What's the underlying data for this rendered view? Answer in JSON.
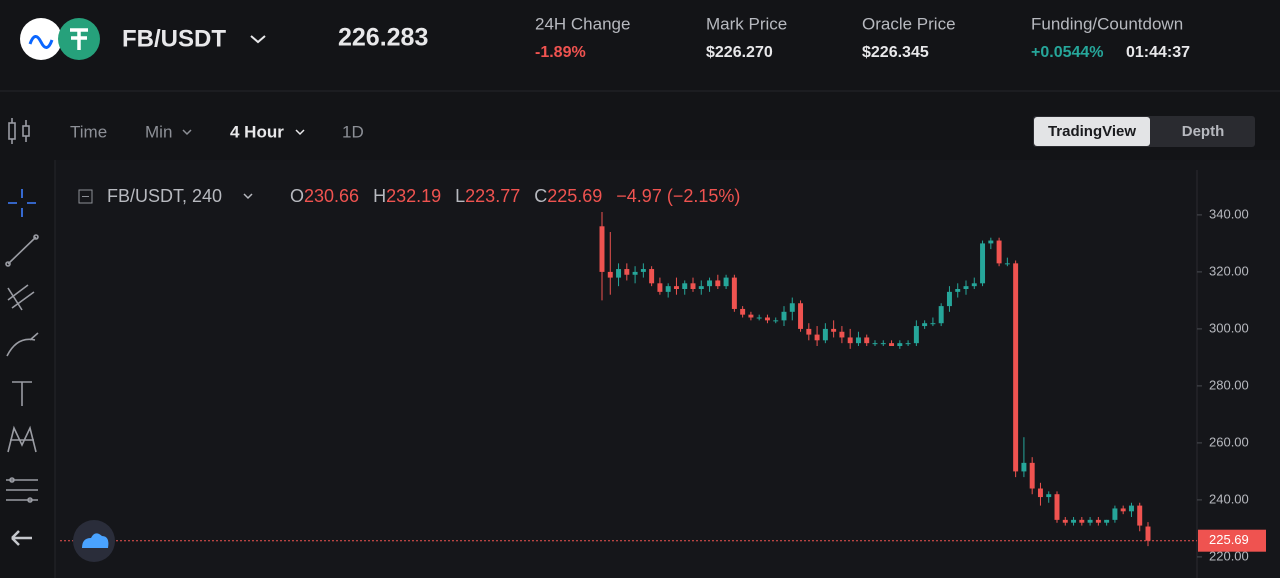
{
  "header": {
    "pair": "FB/USDT",
    "price": "226.283",
    "stats": [
      {
        "label": "24H Change",
        "value": "-1.89%"
      },
      {
        "label": "Mark Price",
        "value": "$226.270"
      },
      {
        "label": "Oracle Price",
        "value": "$226.345"
      },
      {
        "label": "Funding/Countdown",
        "value": "+0.0544%",
        "extra": "01:44:37"
      }
    ]
  },
  "toolbar": {
    "intervals": [
      "Time",
      "Min",
      "4 Hour",
      "1D"
    ],
    "views": [
      "TradingView",
      "Depth"
    ]
  },
  "chart": {
    "symbol": "FB/USDT, 240",
    "ohlc": [
      {
        "label": "O",
        "value": "230.66"
      },
      {
        "label": "H",
        "value": "232.19"
      },
      {
        "label": "L",
        "value": "223.77"
      },
      {
        "label": "C",
        "value": "225.69"
      }
    ],
    "change": "−4.97 (−2.15%)",
    "ylim": [
      212.6,
      354.0
    ],
    "yticks": [
      {
        "value": 220,
        "label": "220.00"
      },
      {
        "value": 240,
        "label": "240.00"
      },
      {
        "value": 260,
        "label": "260.00"
      },
      {
        "value": 280,
        "label": "280.00"
      },
      {
        "value": 300,
        "label": "300.00"
      },
      {
        "value": 320,
        "label": "320.00"
      },
      {
        "value": 340,
        "label": "340.00"
      }
    ],
    "last_price": {
      "value": 225.69,
      "label": "225.69"
    },
    "up_color": "#26a69a",
    "down_color": "#ef5350",
    "candles": [
      [
        336,
        341,
        310,
        320
      ],
      [
        320,
        334,
        312,
        318
      ],
      [
        318,
        323,
        315,
        321
      ],
      [
        321,
        323,
        317,
        319
      ],
      [
        319,
        322,
        316,
        320
      ],
      [
        320,
        323,
        318,
        321
      ],
      [
        321,
        322,
        315,
        316
      ],
      [
        316,
        318,
        312,
        313
      ],
      [
        313,
        316,
        311,
        315
      ],
      [
        315,
        318,
        312,
        314
      ],
      [
        314,
        317,
        312,
        316
      ],
      [
        316,
        318,
        313,
        314
      ],
      [
        314,
        317,
        312,
        315
      ],
      [
        315,
        318,
        313,
        317
      ],
      [
        317,
        319,
        314,
        315
      ],
      [
        315,
        319,
        314,
        318
      ],
      [
        318,
        319,
        306,
        307
      ],
      [
        307,
        308,
        304,
        305
      ],
      [
        305,
        306,
        303,
        304
      ],
      [
        304,
        305,
        303,
        304
      ],
      [
        304,
        305,
        302,
        303
      ],
      [
        303,
        304,
        302,
        303
      ],
      [
        303,
        308,
        301,
        306
      ],
      [
        306,
        311,
        303,
        309
      ],
      [
        309,
        310,
        299,
        300
      ],
      [
        300,
        302,
        296,
        298
      ],
      [
        298,
        301,
        294,
        296
      ],
      [
        296,
        302,
        295,
        300
      ],
      [
        300,
        303,
        297,
        299
      ],
      [
        299,
        301,
        295,
        297
      ],
      [
        297,
        300,
        293,
        295
      ],
      [
        295,
        299,
        294,
        297
      ],
      [
        297,
        298,
        294,
        295
      ],
      [
        295,
        296,
        294,
        295
      ],
      [
        295,
        296,
        294,
        295
      ],
      [
        295,
        296,
        294,
        294
      ],
      [
        294,
        296,
        293,
        295
      ],
      [
        295,
        296,
        294,
        295
      ],
      [
        295,
        303,
        294,
        301
      ],
      [
        301,
        303,
        300,
        302
      ],
      [
        302,
        304,
        301,
        302
      ],
      [
        302,
        309,
        301,
        308
      ],
      [
        308,
        315,
        306,
        313
      ],
      [
        313,
        316,
        311,
        314
      ],
      [
        314,
        317,
        312,
        315
      ],
      [
        315,
        318,
        314,
        316
      ],
      [
        316,
        331,
        315,
        330
      ],
      [
        330,
        332,
        328,
        331
      ],
      [
        331,
        332,
        322,
        323
      ],
      [
        323,
        325,
        322,
        323
      ],
      [
        323,
        324,
        248,
        250
      ],
      [
        250,
        262,
        248,
        253
      ],
      [
        253,
        255,
        242,
        244
      ],
      [
        244,
        246,
        238,
        241
      ],
      [
        241,
        243,
        239,
        242
      ],
      [
        242,
        243,
        232,
        233
      ],
      [
        233,
        234,
        231,
        232
      ],
      [
        232,
        234,
        231,
        233
      ],
      [
        233,
        234,
        231,
        232
      ],
      [
        232,
        234,
        231,
        233
      ],
      [
        233,
        234,
        231,
        232
      ],
      [
        232,
        233,
        231,
        233
      ],
      [
        233,
        238,
        232,
        237
      ],
      [
        237,
        238,
        235,
        236
      ],
      [
        236,
        239,
        234,
        238
      ],
      [
        238,
        239,
        229,
        231
      ],
      [
        230.66,
        232.19,
        223.77,
        225.69
      ]
    ]
  }
}
